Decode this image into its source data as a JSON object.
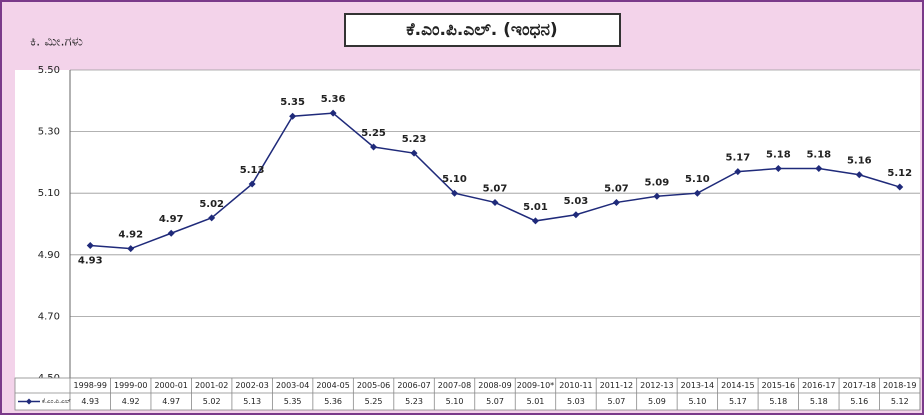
{
  "chart_data": {
    "type": "line",
    "title": "ಕೆ.ಎಂ.ಪಿ.ಎಲ್. (ಇಂಧನ)",
    "y_label": "ಕಿ. ಮೀ.ಗಳು",
    "categories": [
      "1998-99",
      "1999-00",
      "2000-01",
      "2001-02",
      "2002-03",
      "2003-04",
      "2004-05",
      "2005-06",
      "2006-07",
      "2007-08",
      "2008-09",
      "2009-10*",
      "2010-11",
      "2011-12",
      "2012-13",
      "2013-14",
      "2014-15",
      "2015-16",
      "2016-17",
      "2017-18",
      "2018-19"
    ],
    "series": [
      {
        "name": "ಕೆ.ಎಂ.ಪಿ.ಎಲ್",
        "color": "#1f2a7a",
        "values": [
          4.93,
          4.92,
          4.97,
          5.02,
          5.13,
          5.35,
          5.36,
          5.25,
          5.23,
          5.1,
          5.07,
          5.01,
          5.03,
          5.07,
          5.09,
          5.1,
          5.17,
          5.18,
          5.18,
          5.16,
          5.12
        ],
        "value_labels": [
          "4.93",
          "4.92",
          "4.97",
          "5.02",
          "5.13",
          "5.35",
          "5.36",
          "5.25",
          "5.23",
          "5.10",
          "5.07",
          "5.01",
          "5.03",
          "5.07",
          "5.09",
          "5.10",
          "5.17",
          "5.18",
          "5.18",
          "5.16",
          "5.12"
        ]
      }
    ],
    "ylim": [
      4.5,
      5.5
    ],
    "yticks": [
      {
        "value": 4.5,
        "label": "4.50"
      },
      {
        "value": 4.7,
        "label": "4.70"
      },
      {
        "value": 4.9,
        "label": "4.90"
      },
      {
        "value": 5.1,
        "label": "5.10"
      },
      {
        "value": 5.3,
        "label": "5.30"
      },
      {
        "value": 5.5,
        "label": "5.50"
      }
    ],
    "grid": true
  }
}
